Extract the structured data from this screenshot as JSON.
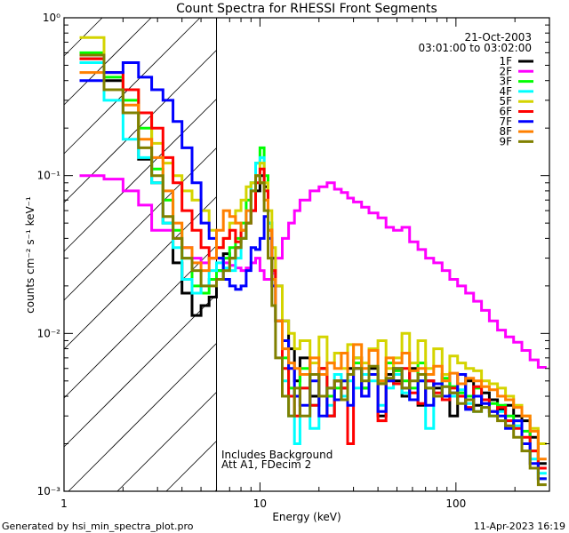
{
  "chart_data": {
    "type": "line",
    "title": "Count Spectra for RHESSI Front Segments",
    "xlabel": "Energy (keV)",
    "ylabel": "counts cm⁻² s⁻¹ keV⁻¹",
    "xscale": "log",
    "yscale": "log",
    "xlim": [
      1,
      300
    ],
    "ylim": [
      0.001,
      1
    ],
    "x_ticks": [
      1,
      10,
      100
    ],
    "x_tick_labels": [
      "1",
      "10",
      "100"
    ],
    "y_ticks": [
      1,
      0.1,
      0.01,
      0.001
    ],
    "y_tick_labels": [
      "10⁰",
      "10⁻¹",
      "10⁻²",
      "10⁻³"
    ],
    "excluded_region_keV": [
      1,
      6
    ],
    "date": "21-Oct-2003",
    "time_range": "03:01:00 to 03:02:00",
    "annotations": [
      "Includes Background",
      "Att A1, FDecim 2"
    ],
    "legend_position": "top-right",
    "energy_edges": [
      1.2,
      1.6,
      2.0,
      2.4,
      2.8,
      3.2,
      3.6,
      4.0,
      4.5,
      5.0,
      5.5,
      6.0,
      6.5,
      7.0,
      7.5,
      8.0,
      8.5,
      9.0,
      9.5,
      10.0,
      10.5,
      11.0,
      11.5,
      12,
      13,
      14,
      15,
      16,
      18,
      20,
      22,
      24,
      26,
      28,
      30,
      33,
      36,
      40,
      44,
      48,
      53,
      58,
      64,
      70,
      77,
      85,
      93,
      102,
      112,
      123,
      135,
      148,
      163,
      179,
      197,
      217,
      239,
      263,
      290
    ],
    "series": [
      {
        "name": "1F",
        "color": "#000000",
        "values": [
          0.55,
          0.4,
          0.25,
          0.127,
          0.09,
          0.05,
          0.028,
          0.018,
          0.013,
          0.015,
          0.017,
          0.025,
          0.032,
          0.03,
          0.035,
          0.04,
          0.05,
          0.06,
          0.08,
          0.1,
          0.085,
          0.05,
          0.03,
          0.02,
          0.012,
          0.008,
          0.005,
          0.007,
          0.004,
          0.006,
          0.003,
          0.005,
          0.0045,
          0.006,
          0.007,
          0.0045,
          0.006,
          0.003,
          0.0055,
          0.005,
          0.004,
          0.006,
          0.0035,
          0.005,
          0.0045,
          0.0055,
          0.003,
          0.004,
          0.005,
          0.0035,
          0.0042,
          0.0038,
          0.0033,
          0.0035,
          0.003,
          0.0028,
          0.0022,
          0.0015
        ]
      },
      {
        "name": "2F",
        "color": "#ff00ff",
        "values": [
          0.1,
          0.095,
          0.08,
          0.065,
          0.045,
          0.045,
          0.04,
          0.035,
          0.03,
          0.028,
          0.03,
          0.03,
          0.028,
          0.027,
          0.026,
          0.025,
          0.026,
          0.028,
          0.03,
          0.025,
          0.022,
          0.022,
          0.024,
          0.03,
          0.04,
          0.05,
          0.06,
          0.07,
          0.08,
          0.085,
          0.09,
          0.082,
          0.078,
          0.072,
          0.068,
          0.063,
          0.058,
          0.054,
          0.047,
          0.045,
          0.047,
          0.038,
          0.034,
          0.03,
          0.028,
          0.025,
          0.022,
          0.02,
          0.018,
          0.016,
          0.014,
          0.012,
          0.0105,
          0.0095,
          0.0088,
          0.0078,
          0.0068,
          0.0061
        ]
      },
      {
        "name": "3F",
        "color": "#00ff00",
        "values": [
          0.6,
          0.42,
          0.3,
          0.2,
          0.11,
          0.07,
          0.045,
          0.03,
          0.02,
          0.018,
          0.022,
          0.025,
          0.03,
          0.035,
          0.04,
          0.05,
          0.07,
          0.09,
          0.12,
          0.15,
          0.1,
          0.05,
          0.025,
          0.012,
          0.007,
          0.0045,
          0.004,
          0.006,
          0.0035,
          0.0055,
          0.004,
          0.0045,
          0.005,
          0.0055,
          0.0065,
          0.0045,
          0.0055,
          0.005,
          0.0065,
          0.0058,
          0.005,
          0.0045,
          0.0065,
          0.0045,
          0.004,
          0.0052,
          0.0046,
          0.0042,
          0.004,
          0.0045,
          0.0038,
          0.0036,
          0.0035,
          0.003,
          0.0028,
          0.0024,
          0.0018,
          0.0012
        ]
      },
      {
        "name": "4F",
        "color": "#00ffff",
        "values": [
          0.52,
          0.3,
          0.17,
          0.13,
          0.09,
          0.05,
          0.035,
          0.022,
          0.018,
          0.02,
          0.025,
          0.028,
          0.026,
          0.025,
          0.03,
          0.04,
          0.06,
          0.09,
          0.12,
          0.13,
          0.09,
          0.05,
          0.025,
          0.012,
          0.005,
          0.003,
          0.002,
          0.0045,
          0.0025,
          0.004,
          0.0035,
          0.0055,
          0.004,
          0.005,
          0.0045,
          0.0055,
          0.005,
          0.0035,
          0.0045,
          0.0055,
          0.0042,
          0.0038,
          0.005,
          0.0025,
          0.0048,
          0.0046,
          0.004,
          0.0044,
          0.0036,
          0.0032,
          0.0034,
          0.003,
          0.0032,
          0.0028,
          0.0026,
          0.002,
          0.0016,
          0.0013
        ]
      },
      {
        "name": "5F",
        "color": "#d4d400",
        "values": [
          0.75,
          0.45,
          0.35,
          0.25,
          0.16,
          0.12,
          0.1,
          0.08,
          0.07,
          0.06,
          0.045,
          0.035,
          0.04,
          0.05,
          0.06,
          0.07,
          0.085,
          0.09,
          0.1,
          0.12,
          0.09,
          0.06,
          0.035,
          0.02,
          0.012,
          0.01,
          0.008,
          0.009,
          0.0065,
          0.0095,
          0.0065,
          0.0075,
          0.006,
          0.0085,
          0.007,
          0.0065,
          0.008,
          0.009,
          0.006,
          0.007,
          0.01,
          0.0065,
          0.009,
          0.006,
          0.008,
          0.0055,
          0.0072,
          0.0065,
          0.006,
          0.0058,
          0.005,
          0.0048,
          0.0045,
          0.004,
          0.0035,
          0.003,
          0.0025,
          0.002
        ]
      },
      {
        "name": "6F",
        "color": "#ff0000",
        "values": [
          0.55,
          0.45,
          0.35,
          0.25,
          0.2,
          0.13,
          0.09,
          0.06,
          0.045,
          0.035,
          0.03,
          0.035,
          0.04,
          0.045,
          0.038,
          0.045,
          0.05,
          0.06,
          0.09,
          0.11,
          0.08,
          0.045,
          0.025,
          0.012,
          0.006,
          0.004,
          0.003,
          0.0045,
          0.0035,
          0.006,
          0.003,
          0.005,
          0.0045,
          0.002,
          0.006,
          0.004,
          0.0055,
          0.0028,
          0.005,
          0.0048,
          0.006,
          0.0042,
          0.0036,
          0.005,
          0.0042,
          0.0038,
          0.0045,
          0.004,
          0.0034,
          0.0046,
          0.0038,
          0.0032,
          0.0034,
          0.0028,
          0.0025,
          0.0022,
          0.0018,
          0.0014
        ]
      },
      {
        "name": "7F",
        "color": "#0000ff",
        "values": [
          0.4,
          0.45,
          0.52,
          0.42,
          0.35,
          0.3,
          0.22,
          0.15,
          0.09,
          0.05,
          0.04,
          0.03,
          0.022,
          0.02,
          0.019,
          0.02,
          0.025,
          0.035,
          0.034,
          0.04,
          0.055,
          0.04,
          0.02,
          0.012,
          0.009,
          0.006,
          0.004,
          0.0035,
          0.005,
          0.003,
          0.0045,
          0.0038,
          0.005,
          0.0035,
          0.006,
          0.004,
          0.0055,
          0.0032,
          0.005,
          0.006,
          0.0045,
          0.0038,
          0.005,
          0.0035,
          0.0048,
          0.004,
          0.0042,
          0.0055,
          0.0033,
          0.004,
          0.0036,
          0.0032,
          0.003,
          0.0025,
          0.0028,
          0.002,
          0.0015,
          0.0012
        ]
      },
      {
        "name": "8F",
        "color": "#ff8000",
        "values": [
          0.45,
          0.35,
          0.28,
          0.17,
          0.13,
          0.08,
          0.05,
          0.035,
          0.028,
          0.025,
          0.03,
          0.045,
          0.06,
          0.055,
          0.05,
          0.045,
          0.06,
          0.08,
          0.1,
          0.09,
          0.07,
          0.045,
          0.022,
          0.012,
          0.008,
          0.0065,
          0.006,
          0.0055,
          0.007,
          0.0055,
          0.0065,
          0.006,
          0.0075,
          0.0055,
          0.0085,
          0.006,
          0.0078,
          0.005,
          0.007,
          0.0065,
          0.0075,
          0.0058,
          0.006,
          0.0055,
          0.0062,
          0.005,
          0.0056,
          0.0048,
          0.0052,
          0.005,
          0.0046,
          0.0044,
          0.004,
          0.0038,
          0.0034,
          0.003,
          0.0024,
          0.0016
        ]
      },
      {
        "name": "9F",
        "color": "#808000",
        "values": [
          0.58,
          0.35,
          0.25,
          0.15,
          0.1,
          0.055,
          0.04,
          0.03,
          0.025,
          0.02,
          0.02,
          0.022,
          0.025,
          0.03,
          0.035,
          0.04,
          0.05,
          0.08,
          0.1,
          0.09,
          0.06,
          0.03,
          0.015,
          0.007,
          0.004,
          0.003,
          0.0045,
          0.003,
          0.0055,
          0.004,
          0.0045,
          0.005,
          0.0038,
          0.0055,
          0.006,
          0.005,
          0.0062,
          0.0048,
          0.0052,
          0.006,
          0.0045,
          0.005,
          0.0055,
          0.0045,
          0.004,
          0.0046,
          0.0042,
          0.0036,
          0.0038,
          0.0032,
          0.0034,
          0.003,
          0.0028,
          0.0026,
          0.0022,
          0.0018,
          0.0014,
          0.0011
        ]
      }
    ]
  },
  "footer": {
    "generated_by": "Generated by hsi_min_spectra_plot.pro",
    "timestamp": "11-Apr-2023 16:19"
  }
}
